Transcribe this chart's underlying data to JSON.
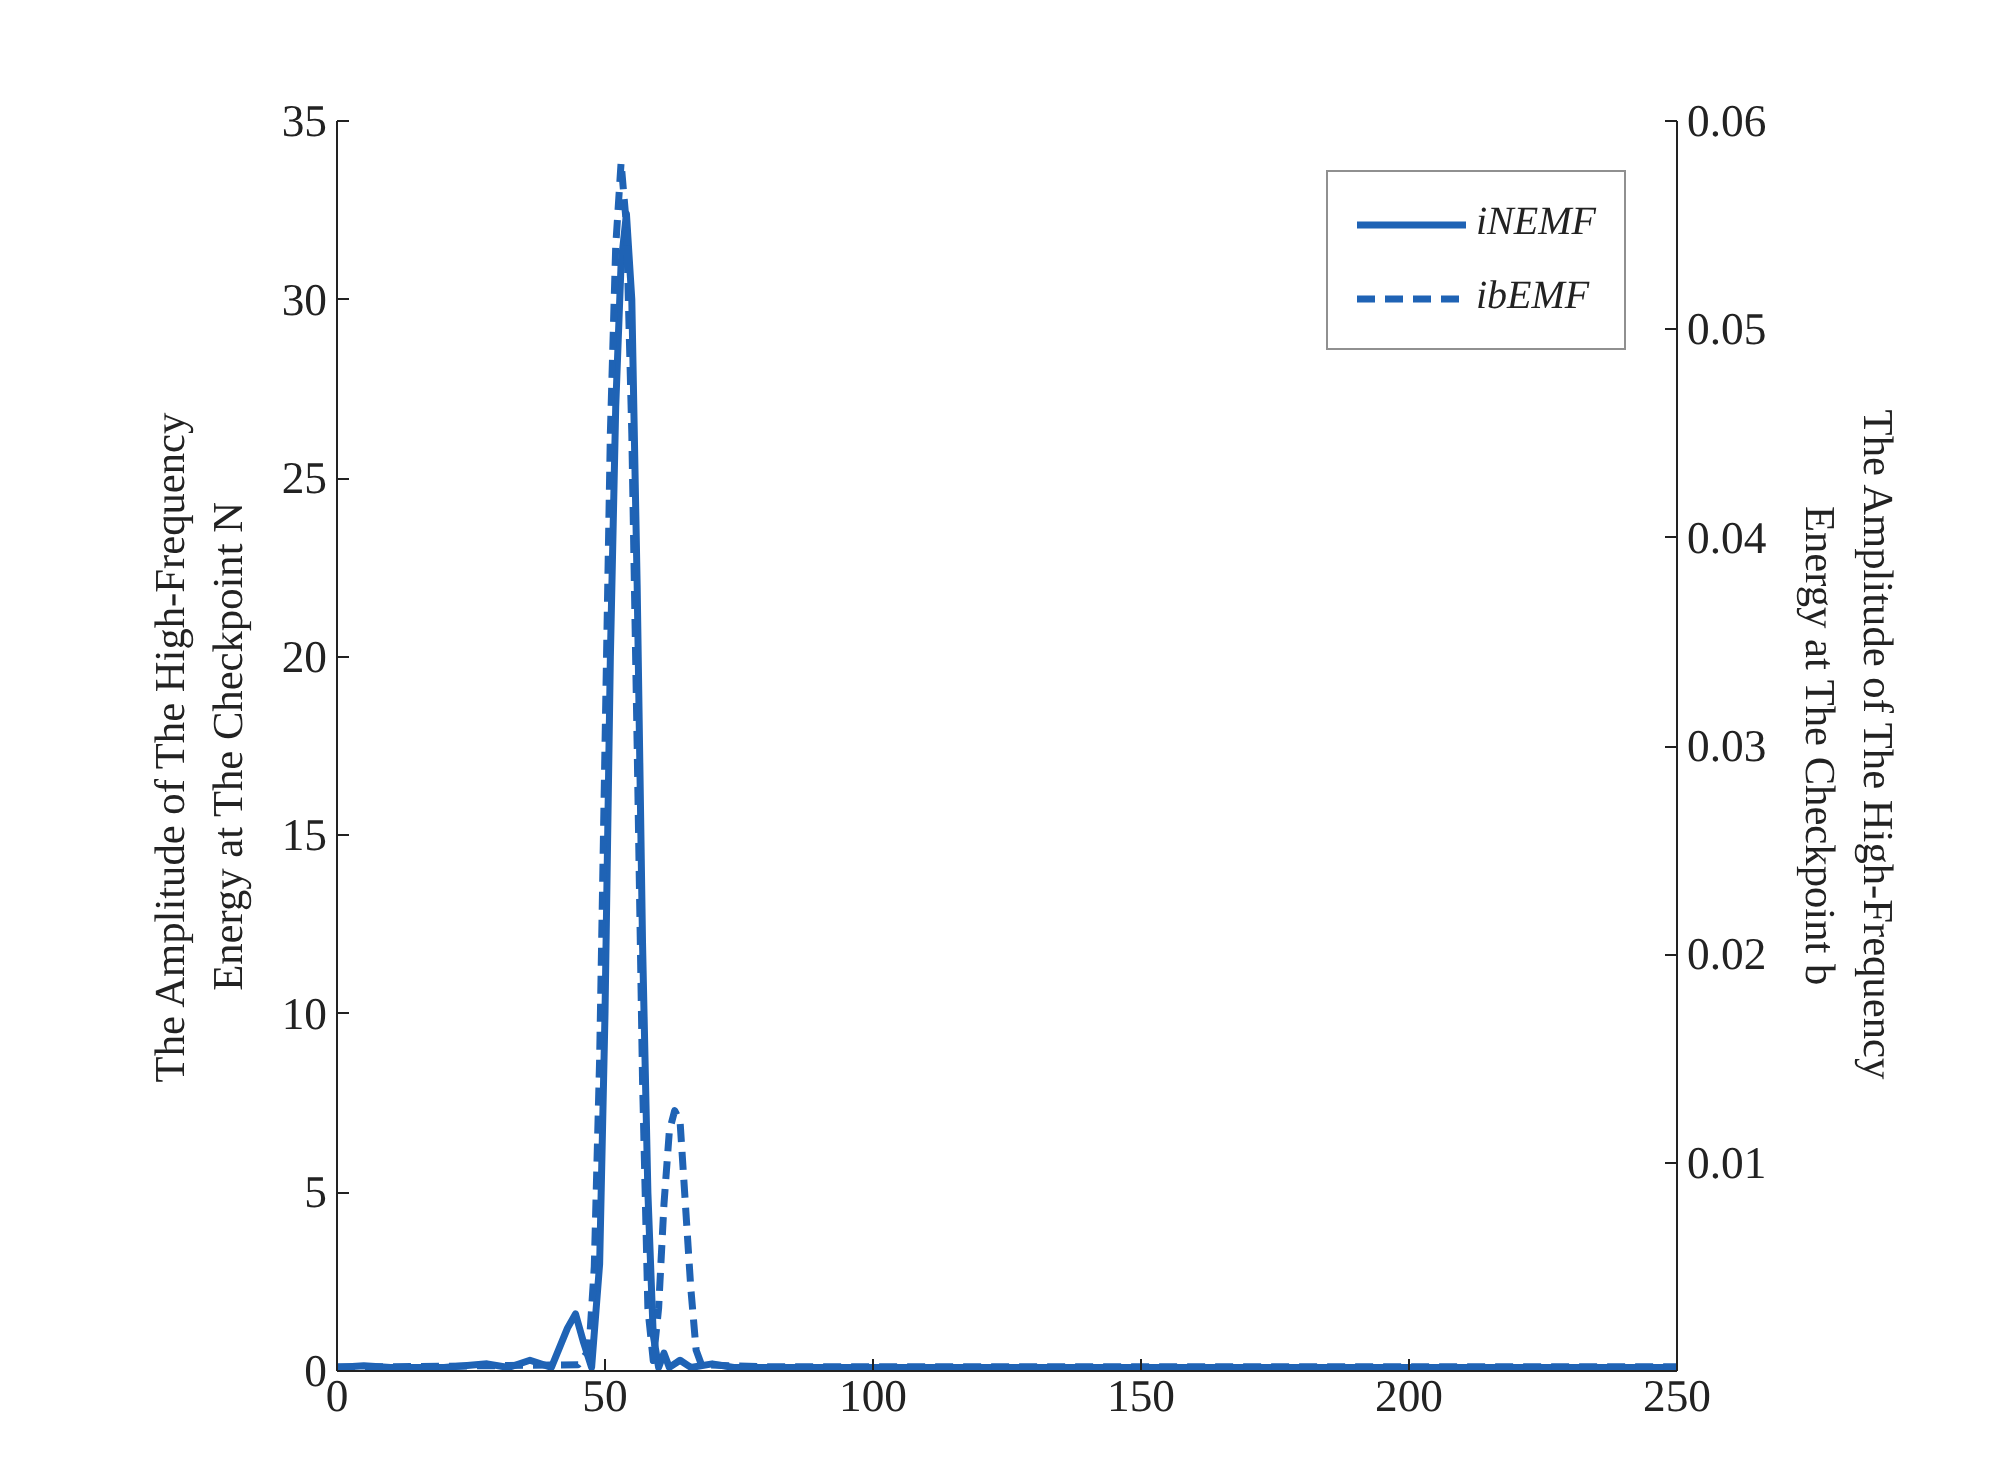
{
  "chart_data": {
    "type": "line",
    "xlabel": null,
    "ylabel": "The Amplitude of The High-Frequency\nEnergy at The Checkpoint N",
    "y2label": "The Amplitude of The High-Frequency\nEnergy at The Checkpoint b",
    "xlim": [
      0,
      250
    ],
    "xticks": [
      0,
      50,
      100,
      150,
      200,
      250
    ],
    "ylim": [
      0,
      35
    ],
    "yticks": [
      0,
      5,
      10,
      15,
      20,
      25,
      30,
      35
    ],
    "y2lim": [
      0,
      0.06
    ],
    "y2ticks": [
      0.01,
      0.02,
      0.03,
      0.04,
      0.05,
      0.06
    ],
    "grid": false,
    "legend": "top right",
    "marker": "none",
    "series": [
      {
        "name": "iNEMF",
        "color": "#1f63b5",
        "line_style": "solid",
        "x": [
          0,
          5,
          10,
          20,
          28,
          32,
          36,
          40,
          43,
          44.5,
          46,
          47.5,
          49,
          50,
          51,
          52,
          53,
          54,
          55,
          56,
          57,
          58,
          59,
          60,
          61,
          62,
          64,
          66,
          70,
          74,
          80,
          100,
          150,
          200,
          250
        ],
        "values": [
          0.1,
          0.15,
          0.1,
          0.1,
          0.2,
          0.1,
          0.3,
          0.1,
          1.2,
          1.6,
          0.8,
          0.1,
          3,
          10,
          20,
          27,
          31,
          32.4,
          30,
          22,
          12,
          5,
          1,
          0.1,
          0.5,
          0.1,
          0.3,
          0.1,
          0.2,
          0.1,
          0.1,
          0.1,
          0.1,
          0.1,
          0.1
        ]
      },
      {
        "name": "ibEMF",
        "color": "#1f63b5",
        "line_style": "dashed",
        "axis": "y2",
        "x": [
          0,
          10,
          45,
          47,
          48,
          49,
          50,
          51,
          52,
          53,
          54,
          55,
          56,
          57,
          58,
          59,
          60,
          61,
          62,
          63,
          64,
          65,
          66,
          67,
          68,
          80,
          250
        ],
        "values": [
          0.0002,
          0.0002,
          0.0003,
          0.001,
          0.005,
          0.015,
          0.03,
          0.045,
          0.054,
          0.058,
          0.055,
          0.045,
          0.03,
          0.014,
          0.003,
          0.0005,
          0.003,
          0.008,
          0.0115,
          0.0125,
          0.012,
          0.008,
          0.004,
          0.001,
          0.0003,
          0.0002,
          0.0002
        ]
      }
    ]
  }
}
